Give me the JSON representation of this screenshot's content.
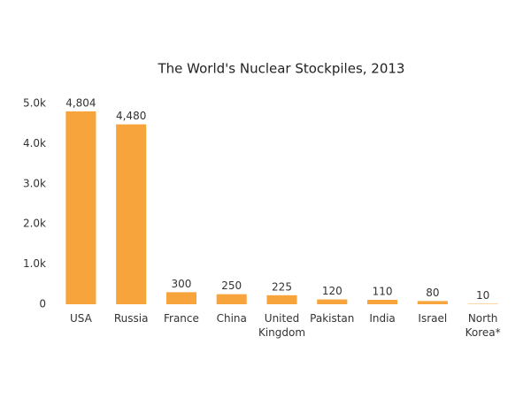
{
  "chart_data": {
    "type": "bar",
    "title": "The World's Nuclear Stockpiles, 2013",
    "categories": [
      "USA",
      "Russia",
      "France",
      "China",
      "United Kingdom",
      "Pakistan",
      "India",
      "Israel",
      "North Korea*"
    ],
    "values": [
      4804,
      4480,
      300,
      250,
      225,
      120,
      110,
      80,
      10
    ],
    "value_labels": [
      "4,804",
      "4,480",
      "300",
      "250",
      "225",
      "120",
      "110",
      "80",
      "10"
    ],
    "color": "#f7a43c",
    "ylim": [
      0,
      5000
    ],
    "yticks": [
      0,
      {
        "value": 1000,
        "label": "1.0k"
      },
      {
        "value": 2000,
        "label": "2.0k"
      },
      {
        "value": 3000,
        "label": "3.0k"
      },
      {
        "value": 4000,
        "label": "4.0k"
      },
      {
        "value": 5000,
        "label": "5.0k"
      }
    ],
    "grid": false
  }
}
